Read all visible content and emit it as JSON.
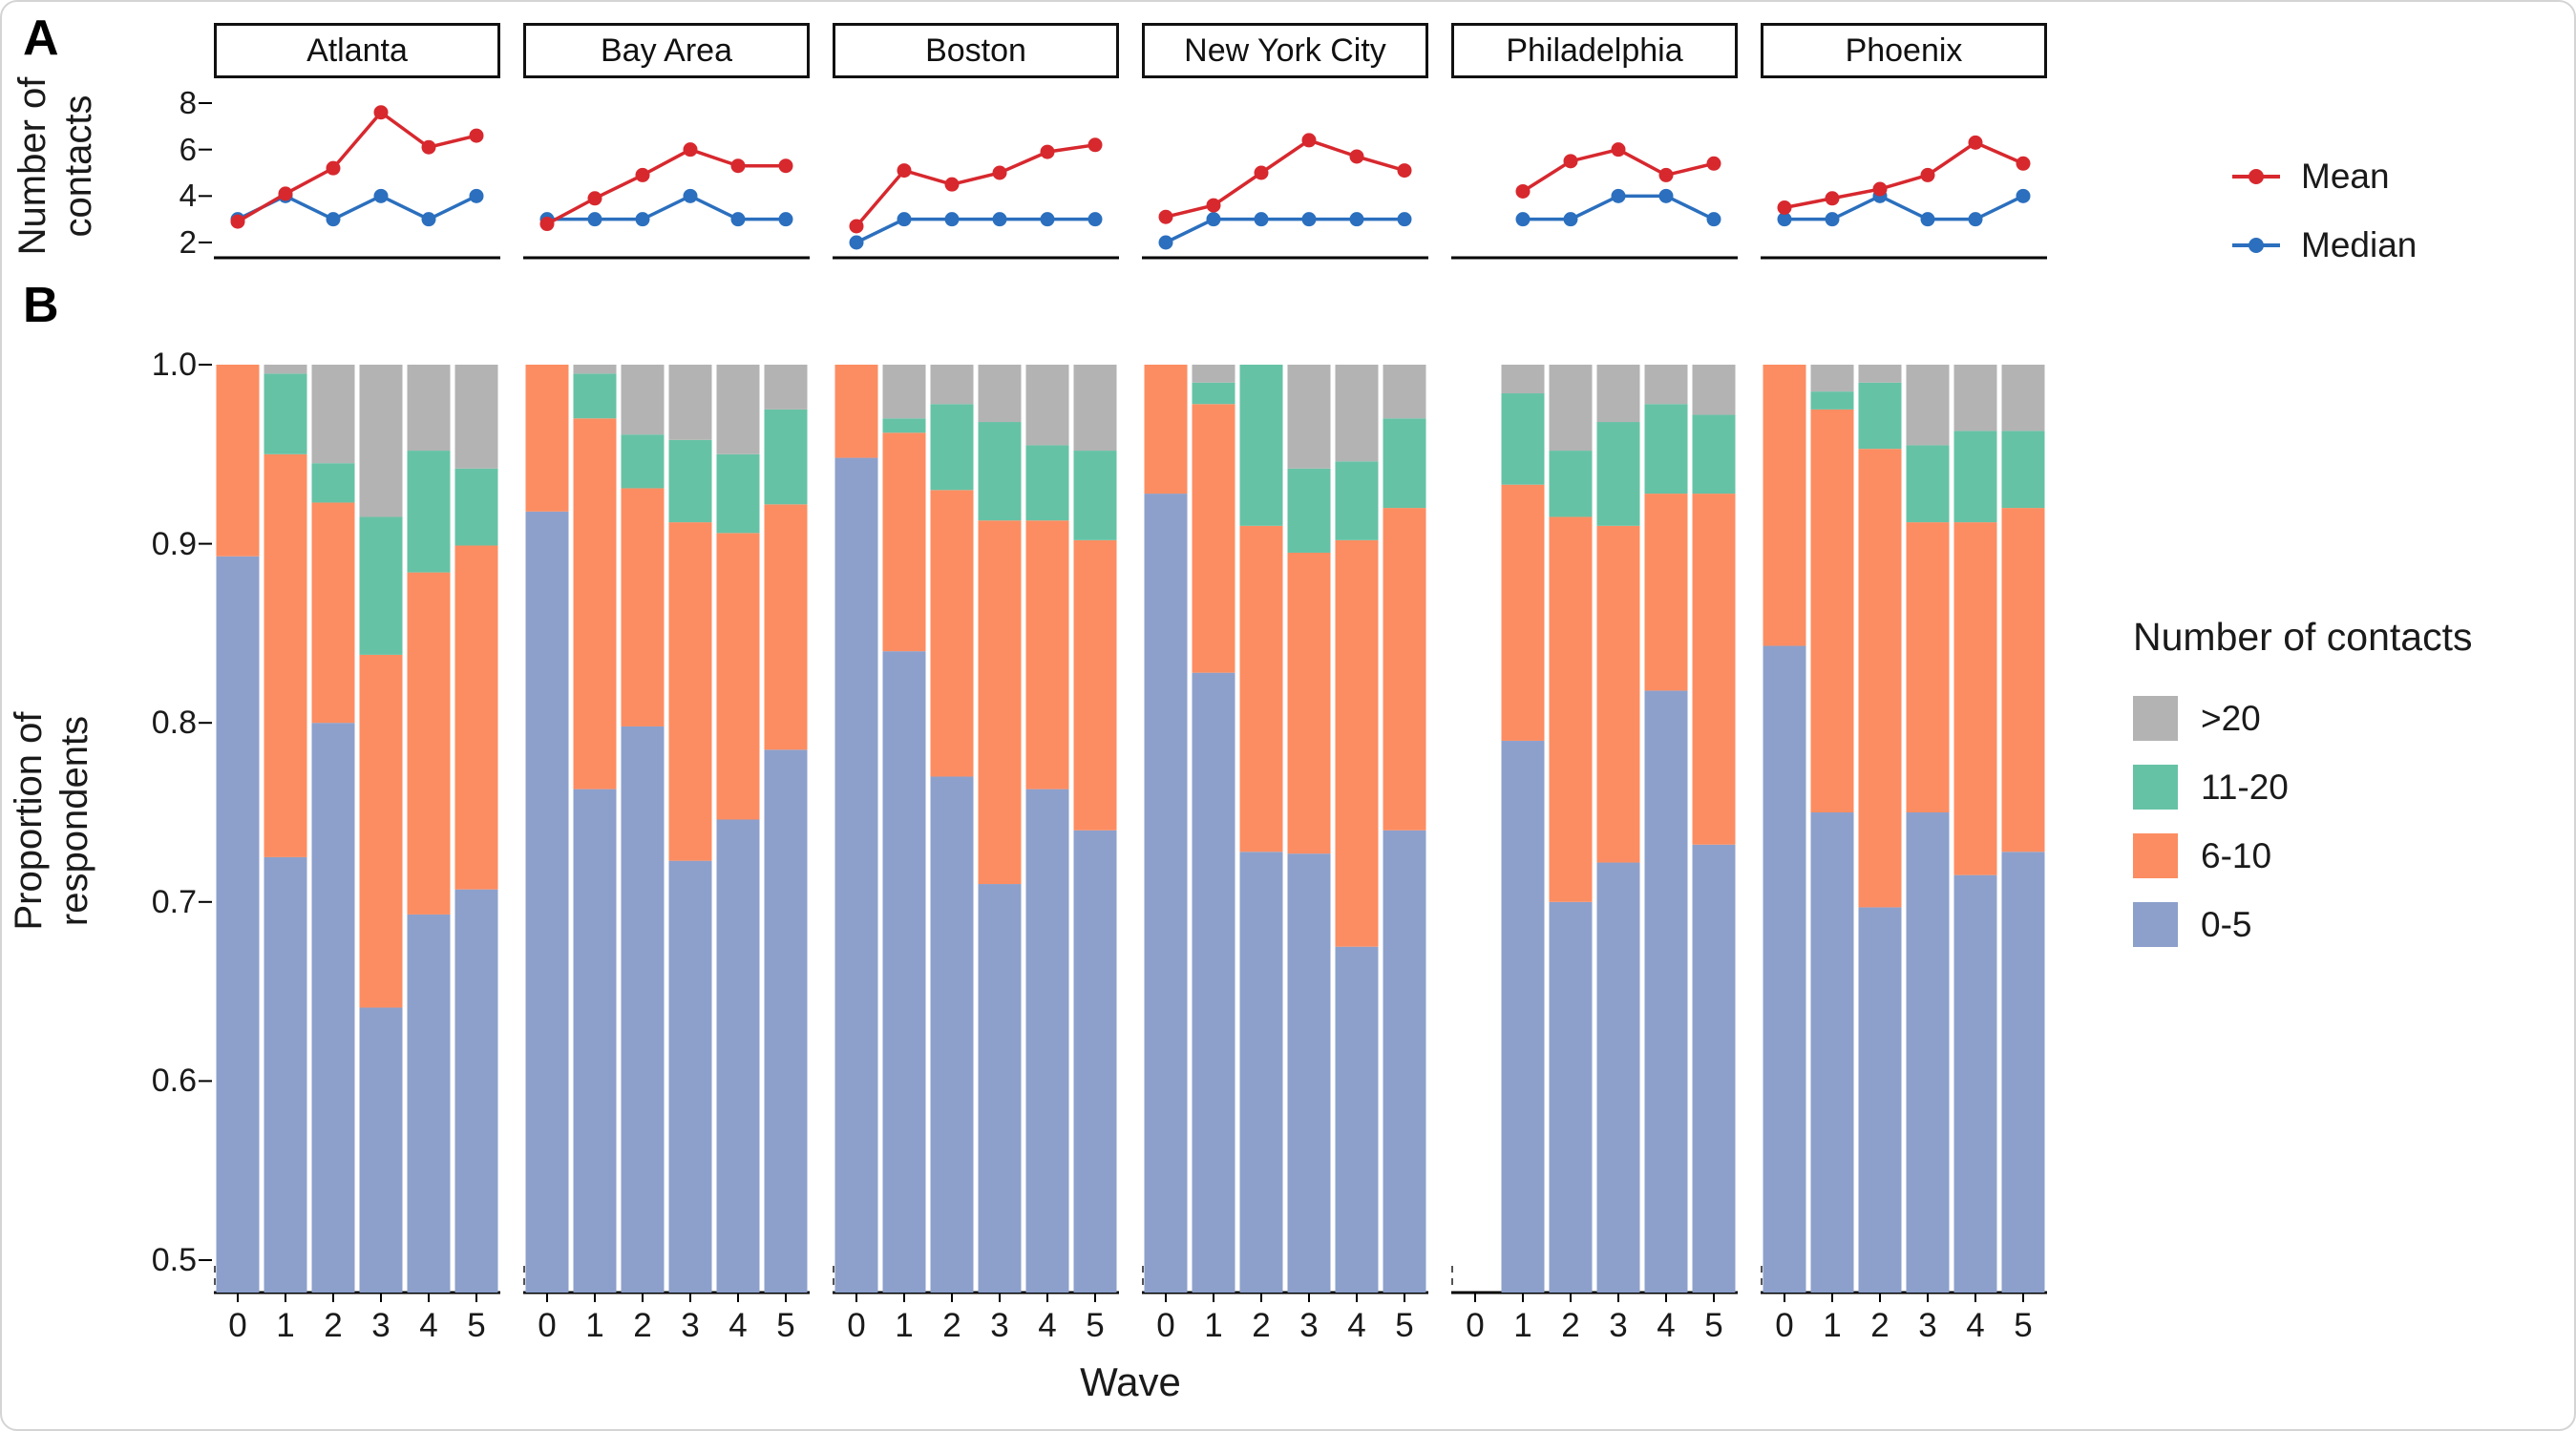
{
  "figure": {
    "panel_a_label": "A",
    "panel_b_label": "B",
    "xlabel": "Wave"
  },
  "facets": [
    "Atlanta",
    "Bay Area",
    "Boston",
    "New York City",
    "Philadelphia",
    "Phoenix"
  ],
  "waves": [
    "0",
    "1",
    "2",
    "3",
    "4",
    "5"
  ],
  "panel_a": {
    "ylabel_line1": "Number of",
    "ylabel_line2": "contacts",
    "yticks": [
      "2",
      "4",
      "6",
      "8"
    ],
    "legend": {
      "mean_label": "Mean",
      "median_label": "Median",
      "mean_color": "#d7282e",
      "median_color": "#2b6fbe"
    }
  },
  "panel_b": {
    "ylabel_line1": "Proportion of",
    "ylabel_line2": "respondents",
    "yticks": [
      "1.0",
      "0.9",
      "0.8",
      "0.7",
      "0.6",
      "0.5"
    ],
    "legend_title": "Number of contacts",
    "categories": [
      {
        "label": ">20",
        "color": "#b3b3b3"
      },
      {
        "label": "11-20",
        "color": "#66c2a5"
      },
      {
        "label": "6-10",
        "color": "#fc8d62"
      },
      {
        "label": "0-5",
        "color": "#8da0cb"
      }
    ]
  },
  "chart_data": [
    {
      "type": "line",
      "panel": "A",
      "title": "Mean and median number of contacts by wave",
      "xlabel": "Wave",
      "ylabel": "Number of contacts",
      "x": [
        0,
        1,
        2,
        3,
        4,
        5
      ],
      "ylim": [
        2,
        8
      ],
      "yticks_values": [
        2,
        4,
        6,
        8
      ],
      "grid": false,
      "legend_position": "right",
      "series_by_facet": {
        "Atlanta": {
          "mean": [
            2.9,
            4.1,
            5.2,
            7.6,
            6.1,
            6.6
          ],
          "median": [
            3,
            4,
            3,
            4,
            3,
            4
          ]
        },
        "Bay Area": {
          "mean": [
            2.8,
            3.9,
            4.9,
            6.0,
            5.3,
            5.3
          ],
          "median": [
            3,
            3,
            3,
            4,
            3,
            3
          ]
        },
        "Boston": {
          "mean": [
            2.7,
            5.1,
            4.5,
            5.0,
            5.9,
            6.2
          ],
          "median": [
            2,
            3,
            3,
            3,
            3,
            3
          ]
        },
        "New York City": {
          "mean": [
            3.1,
            3.6,
            5.0,
            6.4,
            5.7,
            5.1
          ],
          "median": [
            2,
            3,
            3,
            3,
            3,
            3
          ]
        },
        "Philadelphia": {
          "mean": [
            null,
            4.2,
            5.5,
            6.0,
            4.9,
            5.4
          ],
          "median": [
            null,
            3,
            3,
            4,
            4,
            3
          ]
        },
        "Phoenix": {
          "mean": [
            3.5,
            3.9,
            4.3,
            4.9,
            6.3,
            5.4
          ],
          "median": [
            3,
            3,
            4,
            3,
            3,
            4
          ]
        }
      }
    },
    {
      "type": "bar",
      "panel": "B",
      "stacked": true,
      "title": "Proportion of respondents by number of contacts",
      "xlabel": "Wave",
      "ylabel": "Proportion of respondents",
      "x": [
        0,
        1,
        2,
        3,
        4,
        5
      ],
      "ylim": [
        0.5,
        1.0
      ],
      "yticks_values": [
        1.0,
        0.9,
        0.8,
        0.7,
        0.6,
        0.5
      ],
      "grid": false,
      "legend_position": "right",
      "stack_order": [
        "0-5",
        "6-10",
        "11-20",
        ">20"
      ],
      "proportions_by_facet": {
        "Atlanta": {
          "0-5": [
            0.893,
            0.725,
            0.8,
            0.641,
            0.693,
            0.707
          ],
          "6-10": [
            0.107,
            0.225,
            0.123,
            0.197,
            0.191,
            0.192
          ],
          "11-20": [
            0.0,
            0.045,
            0.022,
            0.077,
            0.068,
            0.043
          ],
          ">20": [
            0.0,
            0.005,
            0.055,
            0.085,
            0.048,
            0.058
          ]
        },
        "Bay Area": {
          "0-5": [
            0.918,
            0.763,
            0.798,
            0.723,
            0.746,
            0.785
          ],
          "6-10": [
            0.082,
            0.207,
            0.133,
            0.189,
            0.16,
            0.137
          ],
          "11-20": [
            0.0,
            0.025,
            0.03,
            0.046,
            0.044,
            0.053
          ],
          ">20": [
            0.0,
            0.005,
            0.039,
            0.042,
            0.05,
            0.025
          ]
        },
        "Boston": {
          "0-5": [
            0.948,
            0.84,
            0.77,
            0.71,
            0.763,
            0.74
          ],
          "6-10": [
            0.052,
            0.122,
            0.16,
            0.203,
            0.15,
            0.162
          ],
          "11-20": [
            0.0,
            0.008,
            0.048,
            0.055,
            0.042,
            0.05
          ],
          ">20": [
            0.0,
            0.03,
            0.022,
            0.032,
            0.045,
            0.048
          ]
        },
        "New York City": {
          "0-5": [
            0.928,
            0.828,
            0.728,
            0.727,
            0.675,
            0.74
          ],
          "6-10": [
            0.072,
            0.15,
            0.182,
            0.168,
            0.227,
            0.18
          ],
          "11-20": [
            0.0,
            0.012,
            0.09,
            0.047,
            0.044,
            0.05
          ],
          ">20": [
            0.0,
            0.01,
            0.0,
            0.058,
            0.054,
            0.03
          ]
        },
        "Philadelphia": {
          "0-5": [
            null,
            0.79,
            0.7,
            0.722,
            0.818,
            0.732
          ],
          "6-10": [
            null,
            0.143,
            0.215,
            0.188,
            0.11,
            0.196
          ],
          "11-20": [
            null,
            0.051,
            0.037,
            0.058,
            0.05,
            0.044
          ],
          ">20": [
            null,
            0.016,
            0.048,
            0.032,
            0.022,
            0.028
          ]
        },
        "Phoenix": {
          "0-5": [
            0.843,
            0.75,
            0.697,
            0.75,
            0.715,
            0.728
          ],
          "6-10": [
            0.157,
            0.225,
            0.256,
            0.162,
            0.197,
            0.192
          ],
          "11-20": [
            0.0,
            0.01,
            0.037,
            0.043,
            0.051,
            0.043
          ],
          ">20": [
            0.0,
            0.015,
            0.01,
            0.045,
            0.037,
            0.037
          ]
        }
      }
    }
  ]
}
